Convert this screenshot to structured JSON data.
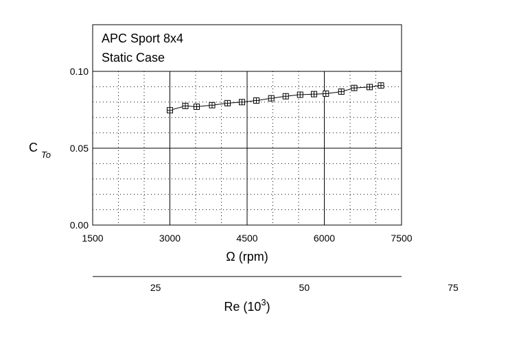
{
  "chart_data": {
    "type": "line",
    "title": [
      "APC Sport 8x4",
      "Static Case"
    ],
    "xlabel": "Ω (rpm)",
    "ylabel_main": "C",
    "ylabel_sub": "To",
    "xlim": [
      1500,
      7500
    ],
    "ylim": [
      0.0,
      0.1
    ],
    "xticks": [
      "1500",
      "3000",
      "4500",
      "6000",
      "7500"
    ],
    "yticks": [
      "0.00",
      "0.05",
      "0.10"
    ],
    "grid": "dotted",
    "secondary_axis": {
      "label_main": "Re (10",
      "label_sup": "3",
      "label_end": ")",
      "ticks": [
        {
          "value": 25,
          "label": "25"
        },
        {
          "value": 50,
          "label": "50"
        },
        {
          "value": 75,
          "label": "75"
        }
      ]
    },
    "series": [
      {
        "marker": "open-square",
        "x": [
          3000,
          3300,
          3520,
          3820,
          4120,
          4400,
          4680,
          4970,
          5250,
          5530,
          5800,
          6030,
          6330,
          6580,
          6880,
          7100
        ],
        "y": [
          0.0747,
          0.0775,
          0.077,
          0.078,
          0.0793,
          0.08,
          0.081,
          0.0825,
          0.0838,
          0.0848,
          0.0852,
          0.0855,
          0.0868,
          0.0892,
          0.0898,
          0.0908
        ]
      }
    ]
  }
}
